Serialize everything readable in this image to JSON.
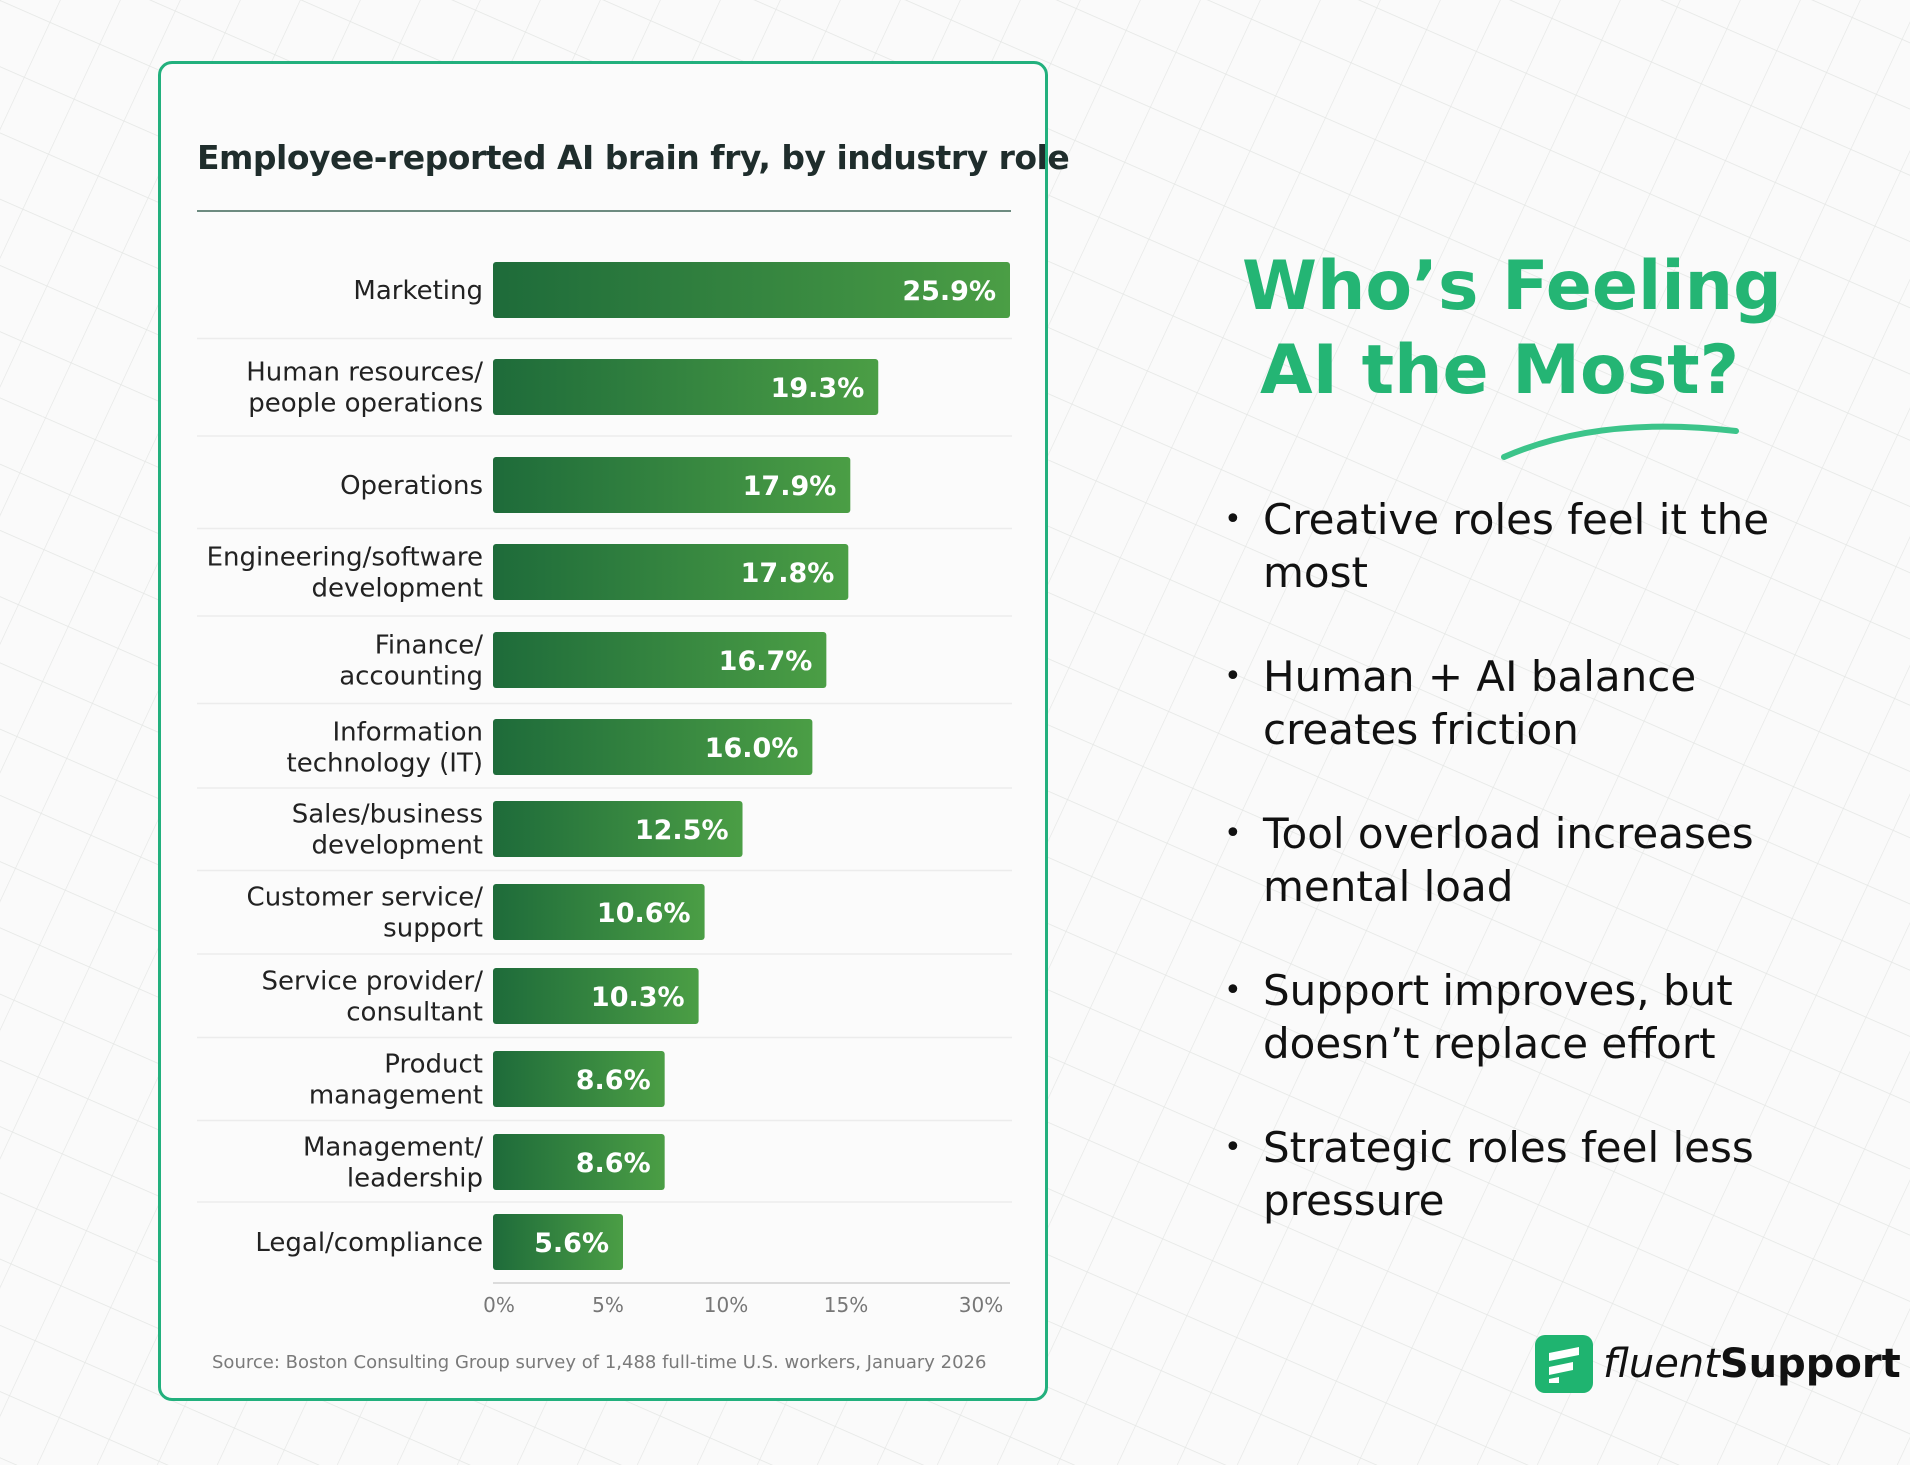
{
  "chart_data": {
    "type": "bar",
    "orientation": "horizontal",
    "title": "Employee-reported AI brain fry, by industry role",
    "categories": [
      "Marketing",
      "Human resources/\npeople operations",
      "Operations",
      "Engineering/software\ndevelopment",
      "Finance/\naccounting",
      "Information\ntechnology (IT)",
      "Sales/business\ndevelopment",
      "Customer service/\nsupport",
      "Service provider/\nconsultant",
      "Product\nmanagement",
      "Management/\nleadership",
      "Legal/compliance"
    ],
    "values": [
      25.9,
      19.3,
      17.9,
      17.8,
      16.7,
      16.0,
      12.5,
      10.6,
      10.3,
      8.6,
      8.6,
      5.6
    ],
    "data_labels": [
      "25.9%",
      "19.3%",
      "17.9%",
      "17.8%",
      "16.7%",
      "16.0%",
      "12.5%",
      "10.6%",
      "10.3%",
      "8.6%",
      "8.6%",
      "5.6%"
    ],
    "x_tick_labels": [
      "0%",
      "5%",
      "10%",
      "15%",
      "30%"
    ],
    "xlabel": "",
    "ylabel": "",
    "xlim": [
      0,
      25.9
    ],
    "grid": false,
    "bar_color_start": "#1e6b3a",
    "bar_color_end": "#4b9e45",
    "source": "Source: Boston Consulting Group survey of 1,488 full-time U.S. workers, January 2026"
  },
  "side_panel": {
    "heading_line1": "Who’s Feeling",
    "heading_line2": "AI the Most?",
    "accent_color": "#24b574",
    "bullets": [
      "Creative roles feel it the most",
      "Human + AI balance creates friction",
      "Tool overload increases mental load",
      "Support improves, but doesn’t replace effort",
      "Strategic roles feel less pressure"
    ]
  },
  "logo": {
    "part1": "fluent",
    "part2": "Support"
  }
}
